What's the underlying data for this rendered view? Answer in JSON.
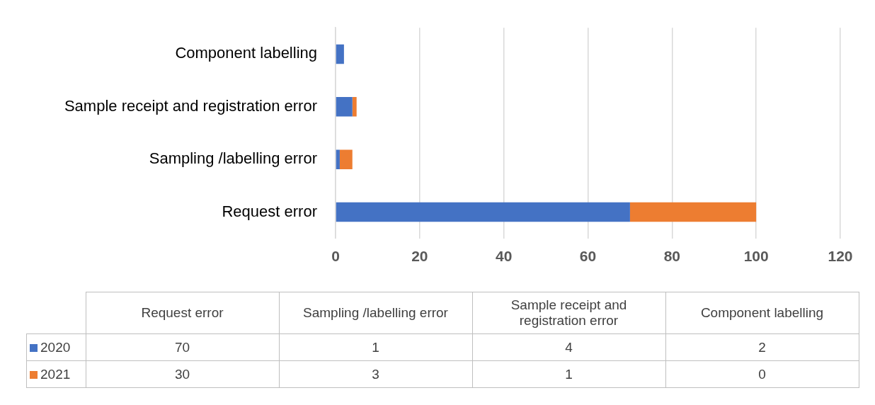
{
  "chart_data": [
    {
      "type": "bar",
      "orientation": "horizontal",
      "stacked": true,
      "categories": [
        "Component labelling",
        "Sample receipt and registration error",
        "Sampling /labelling error",
        "Request error"
      ],
      "series": [
        {
          "color": "#4472c4",
          "values": [
            2,
            4,
            1,
            70
          ]
        },
        {
          "color": "#ed7d31",
          "values": [
            0,
            1,
            3,
            30
          ]
        }
      ],
      "xlim": [
        0,
        120
      ],
      "xticks": [
        0,
        20,
        40,
        60,
        80,
        100,
        120
      ],
      "grid": "x"
    },
    {
      "type": "other",
      "categories": [
        "Request error",
        "Sampling /labelling error",
        "Sample receipt and registration error",
        "Component labelling"
      ],
      "series": [
        {
          "name": "2020",
          "color": "#4472c4",
          "values": [
            70,
            1,
            4,
            2
          ]
        },
        {
          "name": "2021",
          "color": "#ed7d31",
          "values": [
            30,
            3,
            1,
            0
          ]
        }
      ],
      "legend": "left",
      "data_labels": true
    }
  ]
}
